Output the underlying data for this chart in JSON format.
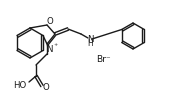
{
  "bg": "#ffffff",
  "lc": "#1a1a1a",
  "lw": 1.0,
  "fs": 5.8,
  "figsize": [
    1.75,
    1.11
  ],
  "dpi": 100,
  "xlim": [
    0,
    175
  ],
  "ylim": [
    0,
    111
  ]
}
